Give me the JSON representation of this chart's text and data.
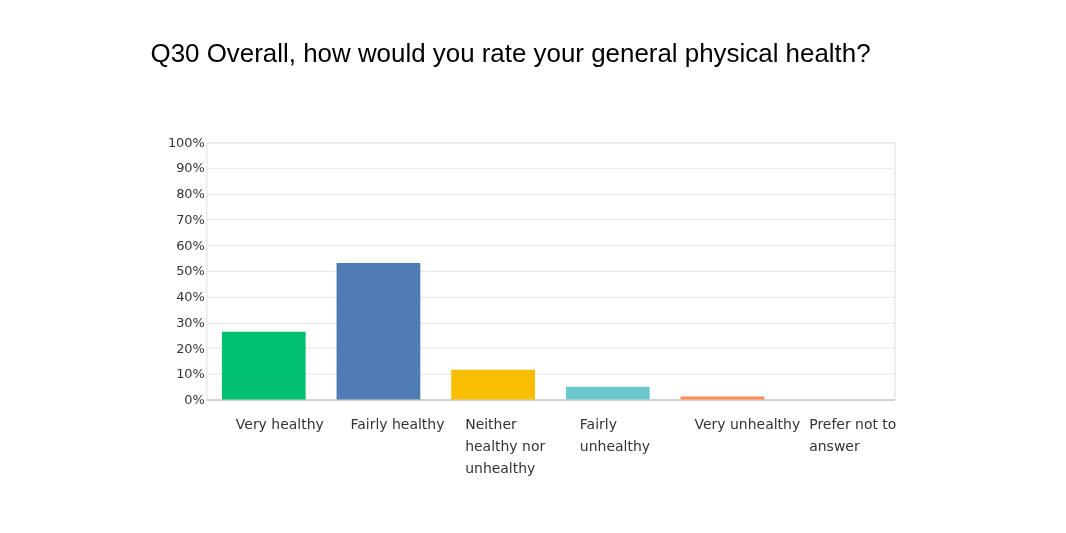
{
  "chart_data": {
    "type": "bar",
    "title": "Q30 Overall, how would you rate your general physical health?",
    "categories": [
      "Very healthy",
      "Fairly healthy",
      "Neither healthy nor unhealthy",
      "Fairly unhealthy",
      "Very unhealthy",
      "Prefer not to answer"
    ],
    "values": [
      26.4,
      53.1,
      11.6,
      5.0,
      1.2,
      0
    ],
    "colors": [
      "#00bf6f",
      "#507cb6",
      "#f9be00",
      "#6bc8cd",
      "#ff8b4f",
      "#9da3a8"
    ],
    "ylim": [
      0,
      100
    ],
    "yticks": [
      {
        "value": 0,
        "label": "0%"
      },
      {
        "value": 10,
        "label": "10%"
      },
      {
        "value": 20,
        "label": "20%"
      },
      {
        "value": 30,
        "label": "30%"
      },
      {
        "value": 40,
        "label": "40%"
      },
      {
        "value": 50,
        "label": "50%"
      },
      {
        "value": 60,
        "label": "60%"
      },
      {
        "value": 70,
        "label": "70%"
      },
      {
        "value": 80,
        "label": "80%"
      },
      {
        "value": 90,
        "label": "90%"
      },
      {
        "value": 100,
        "label": "100%"
      }
    ],
    "grid": "y"
  }
}
